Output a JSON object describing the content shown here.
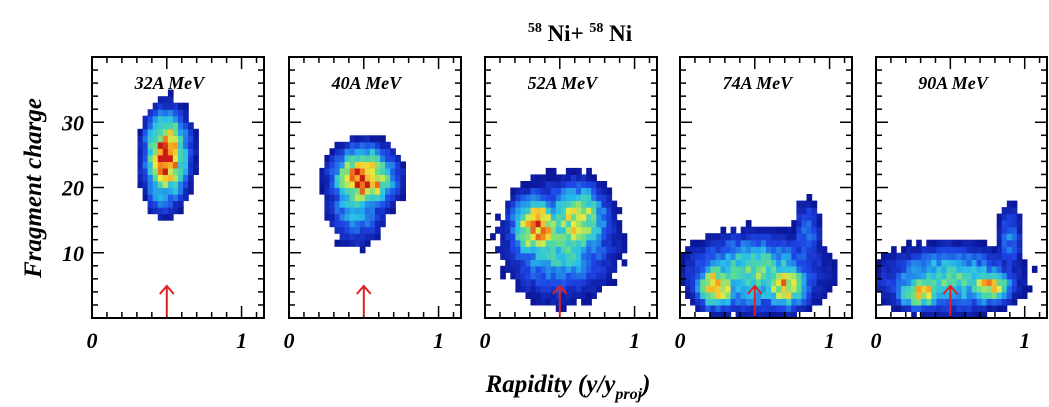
{
  "figure": {
    "title_a": "58",
    "title_b": "Ni+",
    "title_c": "58",
    "title_d": "Ni",
    "ylabel": "Fragment charge",
    "xlabel_main": "Rapidity (y/y",
    "xlabel_sub": "proj",
    "xlabel_end": ")"
  },
  "chart_data": [
    {
      "type": "heatmap",
      "label": "32A MeV",
      "xlim": [
        0,
        1.15
      ],
      "ylim": [
        0,
        40
      ],
      "xticks": [
        "0",
        "1"
      ],
      "yticks": [
        "10",
        "20",
        "30"
      ],
      "marker_x": 0.5,
      "blobs": [
        {
          "x": 0.5,
          "y": 25,
          "sx": 0.1,
          "sy": 4.5,
          "v": 1.0
        },
        {
          "x": 0.48,
          "y": 21,
          "sx": 0.09,
          "sy": 3.5,
          "v": 0.55
        }
      ]
    },
    {
      "type": "heatmap",
      "label": "40A MeV",
      "xlim": [
        0,
        1.15
      ],
      "ylim": [
        0,
        40
      ],
      "xticks": [
        "0",
        "1"
      ],
      "yticks": [
        "10",
        "20",
        "30"
      ],
      "marker_x": 0.5,
      "blobs": [
        {
          "x": 0.5,
          "y": 21.5,
          "sx": 0.14,
          "sy": 3.2,
          "v": 1.0
        },
        {
          "x": 0.45,
          "y": 18,
          "sx": 0.13,
          "sy": 4.5,
          "v": 0.5
        }
      ]
    },
    {
      "type": "heatmap",
      "label": "52A MeV",
      "xlim": [
        0,
        1.15
      ],
      "ylim": [
        0,
        40
      ],
      "xticks": [
        "0",
        "1"
      ],
      "yticks": [
        "10",
        "20",
        "30"
      ],
      "marker_x": 0.5,
      "blobs": [
        {
          "x": 0.35,
          "y": 14,
          "sx": 0.12,
          "sy": 3.5,
          "v": 0.9
        },
        {
          "x": 0.62,
          "y": 15,
          "sx": 0.14,
          "sy": 4,
          "v": 0.75
        },
        {
          "x": 0.5,
          "y": 12,
          "sx": 0.25,
          "sy": 6,
          "v": 0.55
        }
      ]
    },
    {
      "type": "heatmap",
      "label": "74A MeV",
      "xlim": [
        0,
        1.15
      ],
      "ylim": [
        0,
        40
      ],
      "xticks": [
        "0",
        "1"
      ],
      "yticks": [
        "10",
        "20",
        "30"
      ],
      "marker_x": 0.5,
      "blobs": [
        {
          "x": 0.25,
          "y": 5,
          "sx": 0.1,
          "sy": 2.5,
          "v": 0.85
        },
        {
          "x": 0.7,
          "y": 5,
          "sx": 0.12,
          "sy": 2.5,
          "v": 0.8
        },
        {
          "x": 0.5,
          "y": 7,
          "sx": 0.3,
          "sy": 4,
          "v": 0.6
        },
        {
          "x": 0.85,
          "y": 13,
          "sx": 0.07,
          "sy": 4,
          "v": 0.35
        }
      ]
    },
    {
      "type": "heatmap",
      "label": "90A MeV",
      "xlim": [
        0,
        1.15
      ],
      "ylim": [
        0,
        40
      ],
      "xticks": [
        "0",
        "1"
      ],
      "yticks": [
        "10",
        "20",
        "30"
      ],
      "marker_x": 0.5,
      "blobs": [
        {
          "x": 0.3,
          "y": 4,
          "sx": 0.12,
          "sy": 1.8,
          "v": 0.8
        },
        {
          "x": 0.75,
          "y": 5,
          "sx": 0.12,
          "sy": 2.0,
          "v": 0.8
        },
        {
          "x": 0.5,
          "y": 6,
          "sx": 0.32,
          "sy": 3.5,
          "v": 0.55
        },
        {
          "x": 0.9,
          "y": 12,
          "sx": 0.06,
          "sy": 4,
          "v": 0.35
        }
      ]
    }
  ]
}
